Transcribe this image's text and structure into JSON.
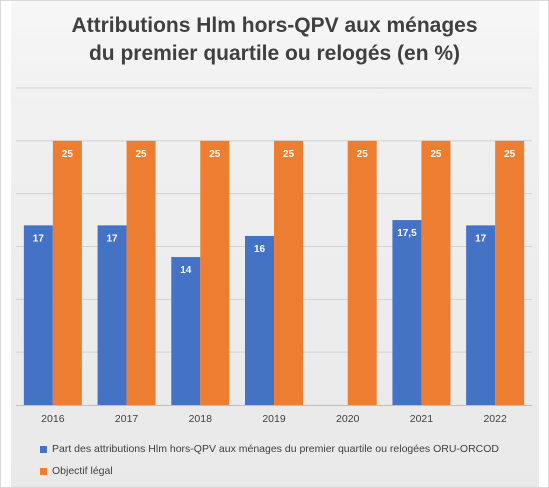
{
  "chart_data": {
    "type": "bar",
    "title_lines": [
      "Attributions Hlm hors-QPV aux ménages",
      "du premier quartile ou relogés (en %)"
    ],
    "categories": [
      "2016",
      "2017",
      "2018",
      "2019",
      "2020",
      "2021",
      "2022"
    ],
    "series": [
      {
        "name": "Part des attributions Hlm hors-QPV aux ménages du premier quartile ou relogées ORU-ORCOD",
        "color": "#4472c4",
        "values": [
          17,
          17,
          14,
          16,
          null,
          17.5,
          17
        ],
        "labels": [
          "17",
          "17",
          "14",
          "16",
          "",
          "17,5",
          "17"
        ]
      },
      {
        "name": "Objectif légal",
        "color": "#ed7d31",
        "values": [
          25,
          25,
          25,
          25,
          25,
          25,
          25
        ],
        "labels": [
          "25",
          "25",
          "25",
          "25",
          "25",
          "25",
          "25"
        ]
      }
    ],
    "ylim": [
      0,
      30
    ],
    "y_gridline_step": 5,
    "y_tick_labels_shown": false,
    "grid": true,
    "legend_position": "bottom-left"
  }
}
